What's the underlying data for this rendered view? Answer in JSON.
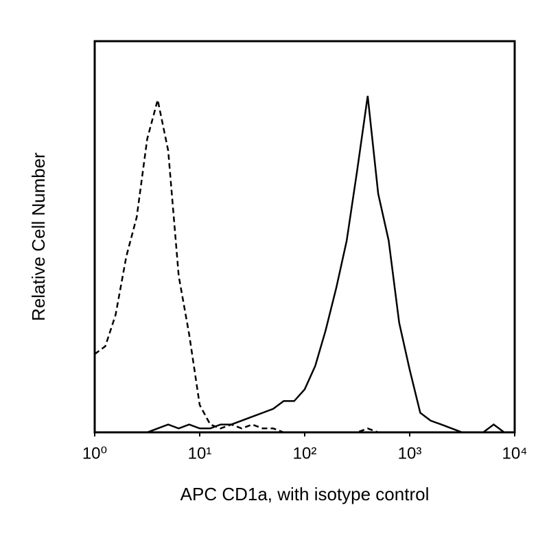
{
  "chart_data": {
    "type": "line",
    "xlabel": "APC CD1a, with isotype control",
    "ylabel": "Relative Cell Number",
    "xscale": "log",
    "xlim": [
      1,
      10000
    ],
    "xticks": [
      {
        "value": 1,
        "label": "10⁰"
      },
      {
        "value": 10,
        "label": "10¹"
      },
      {
        "value": 100,
        "label": "10²"
      },
      {
        "value": 1000,
        "label": "10³"
      },
      {
        "value": 10000,
        "label": "10⁴"
      }
    ],
    "ylim": [
      0,
      100
    ],
    "x": [
      1,
      1.26,
      1.58,
      2,
      2.51,
      3.16,
      3.98,
      5.01,
      6.31,
      7.94,
      10,
      12.6,
      15.8,
      20,
      25.1,
      31.6,
      39.8,
      50.1,
      63.1,
      79.4,
      100,
      126,
      158,
      200,
      251,
      316,
      398,
      501,
      631,
      794,
      1000,
      1260,
      1580,
      2000,
      2510,
      3160,
      3980,
      5010,
      6310,
      7940,
      10000
    ],
    "series": [
      {
        "color": "#000000",
        "line_style": "dashed",
        "values": [
          20,
          22,
          30,
          45,
          55,
          75,
          85,
          72,
          40,
          25,
          7,
          2,
          1,
          2,
          1,
          2,
          1,
          1,
          0,
          0,
          0,
          0,
          0,
          0,
          0,
          0,
          1,
          0,
          0,
          0,
          0,
          0,
          0,
          0,
          0,
          0,
          0,
          0,
          0,
          0,
          0
        ]
      },
      {
        "color": "#000000",
        "line_style": "solid",
        "values": [
          0,
          0,
          0,
          0,
          0,
          0,
          1,
          2,
          1,
          2,
          1,
          1,
          2,
          2,
          3,
          4,
          5,
          6,
          8,
          8,
          11,
          17,
          26,
          37,
          49,
          67,
          86,
          61,
          49,
          28,
          16,
          5,
          3,
          2,
          1,
          0,
          0,
          0,
          2,
          0,
          0
        ]
      }
    ]
  }
}
